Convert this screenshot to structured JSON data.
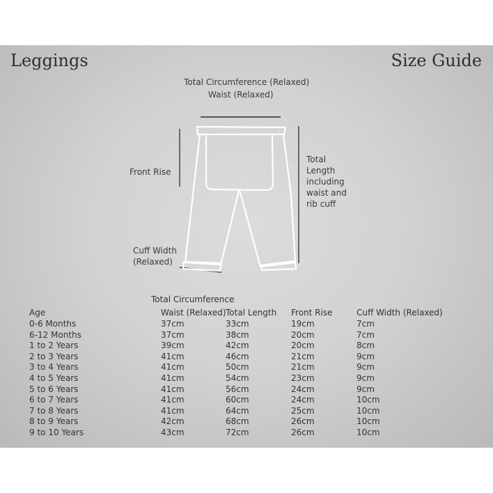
{
  "header": {
    "left_title": "Leggings",
    "right_title": "Size Guide"
  },
  "diagram": {
    "label_circumference": "Total Circumference (Relaxed)",
    "label_waist": "Waist (Relaxed)",
    "label_front_rise": "Front Rise",
    "label_total_length": [
      "Total",
      "Length",
      "including",
      "waist and",
      "rib cuff"
    ],
    "label_cuff": [
      "Cuff Width",
      "(Relaxed)"
    ]
  },
  "table": {
    "super_header": "Total Circumference",
    "columns": [
      "Age",
      "Waist (Relaxed)",
      "Total Length",
      "Front Rise",
      "Cuff Width (Relaxed)"
    ],
    "rows": [
      [
        "0-6 Months",
        "37cm",
        "33cm",
        "19cm",
        "7cm"
      ],
      [
        "6-12 Months",
        "37cm",
        "38cm",
        "20cm",
        "7cm"
      ],
      [
        "1 to 2 Years",
        "39cm",
        "42cm",
        "20cm",
        "8cm"
      ],
      [
        "2 to 3 Years",
        "41cm",
        "46cm",
        "21cm",
        "9cm"
      ],
      [
        "3 to 4 Years",
        "41cm",
        "50cm",
        "21cm",
        "9cm"
      ],
      [
        "4 to 5 Years",
        "41cm",
        "54cm",
        "23cm",
        "9cm"
      ],
      [
        "5 to 6 Years",
        "41cm",
        "56cm",
        "24cm",
        "9cm"
      ],
      [
        "6 to 7 Years",
        "41cm",
        "60cm",
        "24cm",
        "10cm"
      ],
      [
        "7 to 8 Years",
        "41cm",
        "64cm",
        "25cm",
        "10cm"
      ],
      [
        "8 to 9 Years",
        "42cm",
        "68cm",
        "26cm",
        "10cm"
      ],
      [
        "9 to 10 Years",
        "43cm",
        "72cm",
        "26cm",
        "10cm"
      ]
    ]
  }
}
